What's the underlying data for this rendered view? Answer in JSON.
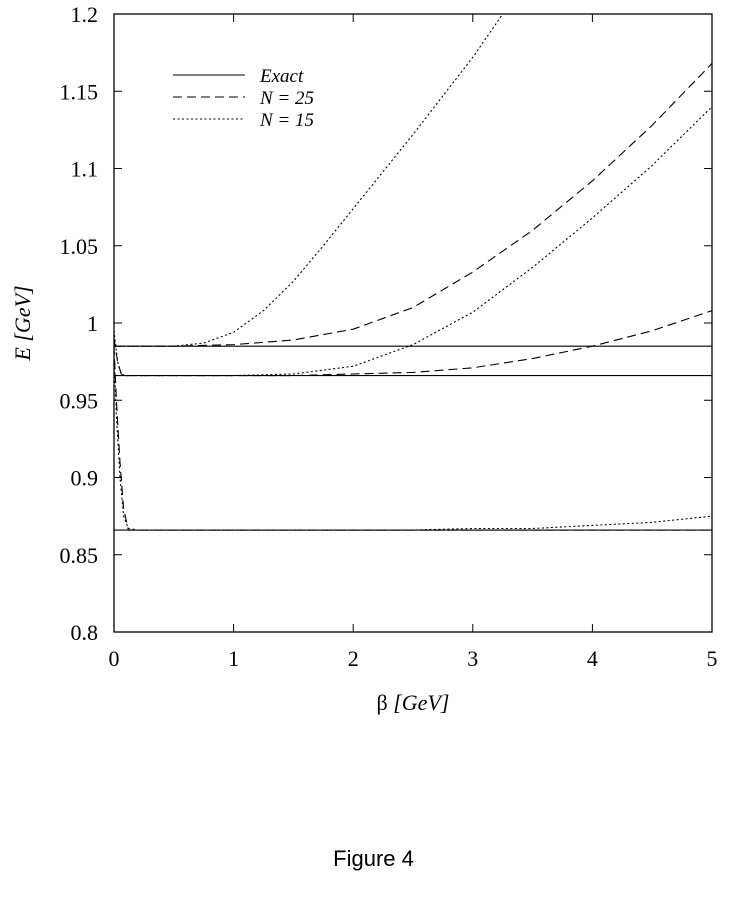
{
  "caption": "Figure 4",
  "chart_data": {
    "type": "line",
    "xlabel_symbol": "β",
    "xlabel_unit": "[GeV]",
    "ylabel_symbol": "E",
    "ylabel_unit": "[GeV]",
    "xlim": [
      0,
      5
    ],
    "ylim": [
      0.8,
      1.2
    ],
    "xticks": [
      "0",
      "1",
      "2",
      "3",
      "4",
      "5"
    ],
    "yticks": [
      "0.8",
      "0.85",
      "0.9",
      "0.95",
      "1",
      "1.05",
      "1.1",
      "1.15",
      "1.2"
    ],
    "grid": false,
    "legend_position": "top-left",
    "legend": [
      {
        "label": "Exact",
        "style": "solid"
      },
      {
        "label": "N = 25",
        "style": "dashed"
      },
      {
        "label": "N = 15",
        "style": "dotted"
      }
    ],
    "series": [
      {
        "name": "Exact",
        "style": "solid",
        "x": [
          0,
          5
        ],
        "y": [
          0.866,
          0.866
        ]
      },
      {
        "name": "Exact",
        "style": "solid",
        "x": [
          0,
          5
        ],
        "y": [
          0.966,
          0.966
        ]
      },
      {
        "name": "Exact",
        "style": "solid",
        "x": [
          0,
          5
        ],
        "y": [
          0.985,
          0.985
        ]
      },
      {
        "name": "N = 25",
        "style": "dashed",
        "x": [
          0.0,
          0.02,
          0.05,
          0.08,
          0.12,
          0.2,
          0.5,
          1.0,
          1.5,
          2.0,
          2.5,
          3.0,
          3.5,
          4.0,
          4.5,
          5.0
        ],
        "y": [
          0.985,
          0.95,
          0.91,
          0.88,
          0.866,
          0.866,
          0.866,
          0.866,
          0.866,
          0.866,
          0.866,
          0.866,
          0.866,
          0.866,
          0.866,
          0.866
        ]
      },
      {
        "name": "N = 25",
        "style": "dashed",
        "x": [
          0.0,
          0.03,
          0.06,
          0.1,
          0.5,
          1.0,
          1.5,
          2.0,
          2.5,
          3.0,
          3.5,
          4.0,
          4.5,
          5.0
        ],
        "y": [
          0.99,
          0.975,
          0.967,
          0.966,
          0.966,
          0.966,
          0.966,
          0.967,
          0.968,
          0.971,
          0.977,
          0.985,
          0.995,
          1.008
        ]
      },
      {
        "name": "N = 25",
        "style": "dashed",
        "x": [
          0.0,
          0.5,
          1.0,
          1.5,
          2.0,
          2.5,
          3.0,
          3.5,
          4.0,
          4.5,
          5.0
        ],
        "y": [
          0.985,
          0.985,
          0.986,
          0.989,
          0.996,
          1.01,
          1.033,
          1.06,
          1.092,
          1.128,
          1.168
        ]
      },
      {
        "name": "N = 15",
        "style": "dotted",
        "x": [
          0.0,
          0.02,
          0.05,
          0.08,
          0.12,
          0.2,
          0.5,
          1.0,
          1.5,
          2.0,
          2.5,
          3.0,
          3.5,
          4.0,
          4.5,
          5.0
        ],
        "y": [
          0.98,
          0.94,
          0.9,
          0.875,
          0.867,
          0.866,
          0.866,
          0.866,
          0.866,
          0.866,
          0.866,
          0.867,
          0.867,
          0.869,
          0.871,
          0.875
        ]
      },
      {
        "name": "N = 15",
        "style": "dotted",
        "x": [
          0.0,
          0.03,
          0.06,
          0.1,
          0.5,
          1.0,
          1.5,
          2.0,
          2.5,
          3.0,
          3.5,
          4.0,
          4.5,
          5.0
        ],
        "y": [
          0.995,
          0.975,
          0.967,
          0.966,
          0.966,
          0.966,
          0.967,
          0.972,
          0.986,
          1.007,
          1.036,
          1.068,
          1.102,
          1.14
        ]
      },
      {
        "name": "N = 15",
        "style": "dotted",
        "x": [
          0.0,
          0.5,
          0.75,
          1.0,
          1.25,
          1.5,
          1.75,
          2.0,
          2.25,
          2.5,
          2.75,
          3.0,
          3.25
        ],
        "y": [
          0.985,
          0.985,
          0.987,
          0.994,
          1.008,
          1.027,
          1.05,
          1.074,
          1.098,
          1.122,
          1.147,
          1.172,
          1.2
        ]
      }
    ]
  }
}
